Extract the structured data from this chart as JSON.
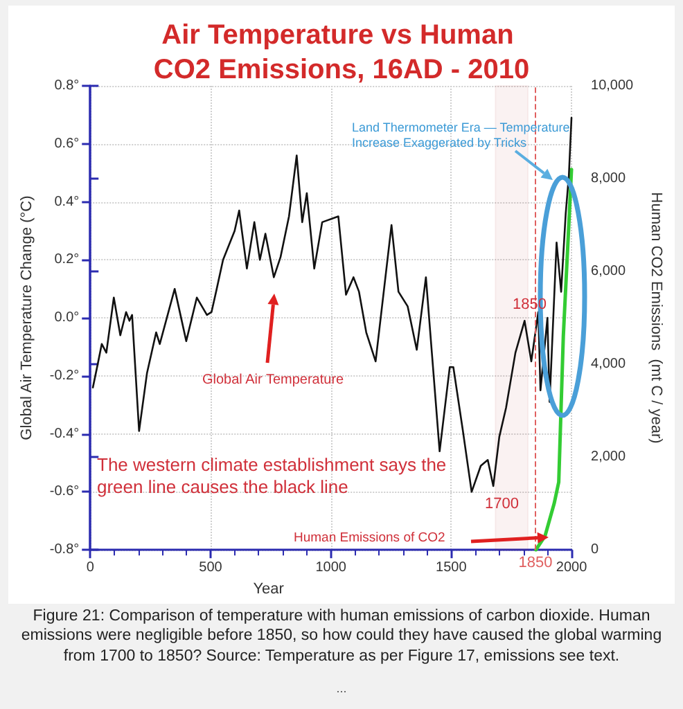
{
  "chart_data": {
    "type": "line",
    "title": "Air Temperature vs Human CO2 Emissions, 16AD - 2010",
    "xlabel": "Year",
    "ylabel": "Global Air Temperature Change (°C)",
    "y2label": "Human CO2 Emissions  (mt C / year)",
    "series": [
      {
        "axis": "y",
        "color": "#111111",
        "x": [
          11,
          31,
          48,
          67,
          98,
          125,
          149,
          163,
          174,
          203,
          236,
          274,
          289,
          351,
          399,
          443,
          485,
          504,
          523,
          552,
          600,
          619,
          651,
          682,
          705,
          728,
          763,
          791,
          826,
          858,
          881,
          900,
          931,
          964,
          1031,
          1063,
          1094,
          1117,
          1147,
          1186,
          1252,
          1281,
          1319,
          1357,
          1395,
          1452,
          1494,
          1509,
          1547,
          1585,
          1623,
          1652,
          1675,
          1700,
          1728,
          1767,
          1805,
          1833,
          1862,
          1871,
          1900,
          1909,
          1938,
          1957,
          1976,
          1989,
          2000
        ],
        "values": [
          -0.24,
          -0.16,
          -0.09,
          -0.12,
          0.07,
          -0.06,
          0.02,
          -0.01,
          0.01,
          -0.39,
          -0.19,
          -0.05,
          -0.09,
          0.1,
          -0.08,
          0.07,
          0.01,
          0.02,
          0.09,
          0.2,
          0.3,
          0.37,
          0.17,
          0.33,
          0.2,
          0.29,
          0.14,
          0.21,
          0.35,
          0.56,
          0.33,
          0.43,
          0.17,
          0.33,
          0.35,
          0.08,
          0.14,
          0.09,
          -0.05,
          -0.15,
          0.32,
          0.09,
          0.04,
          -0.11,
          0.14,
          -0.46,
          -0.17,
          -0.17,
          -0.38,
          -0.6,
          -0.51,
          -0.49,
          -0.58,
          -0.41,
          -0.31,
          -0.12,
          -0.01,
          -0.15,
          0.02,
          -0.25,
          0.0,
          -0.29,
          0.26,
          0.09,
          0.36,
          0.49,
          0.69
        ]
      },
      {
        "axis": "y2",
        "color": "#33cc33",
        "x": [
          1852,
          1890,
          1928,
          1947,
          1966,
          1985,
          2000
        ],
        "values": [
          0,
          300,
          1000,
          1460,
          4600,
          6600,
          8200
        ]
      }
    ],
    "xlim": [
      0,
      2000
    ],
    "xticks": [
      0,
      500,
      1000,
      1500,
      2000
    ],
    "ylim": [
      -0.8,
      0.8
    ],
    "yticks": [
      {
        "value": -0.8,
        "label": "-0.8°"
      },
      {
        "value": -0.6,
        "label": "-0.6°"
      },
      {
        "value": -0.4,
        "label": "-0.4°"
      },
      {
        "value": -0.2,
        "label": "-0.2°"
      },
      {
        "value": 0,
        "label": "0.0°"
      },
      {
        "value": 0.2,
        "label": "0.2°"
      },
      {
        "value": 0.4,
        "label": "0.4°"
      },
      {
        "value": 0.6,
        "label": "0.6°"
      },
      {
        "value": 0.8,
        "label": "0.8°"
      }
    ],
    "y2lim": [
      0,
      10000
    ],
    "y2ticks": [
      0,
      {
        "value": 2000,
        "label": "2,000"
      },
      {
        "value": 4000,
        "label": "4,000"
      },
      {
        "value": 6000,
        "label": "6,000"
      },
      {
        "value": 8000,
        "label": "8,000"
      },
      {
        "value": 10000,
        "label": "10,000"
      }
    ],
    "ref_lines": [
      {
        "axis": "x",
        "value": 1850,
        "label": "1850",
        "color": "#e06060",
        "line_style": "dashed"
      }
    ],
    "bands": [
      {
        "axis": "x",
        "from": 1684,
        "to": 1819,
        "color": "#b22222"
      }
    ],
    "annotations": [
      "Land Thermometer Era — Temperature Increase Exaggerated by Tricks",
      "Global Air Temperature",
      "The western climate establishment says the green line causes the black line",
      "Human Emissions of CO2",
      "1850",
      "1700",
      "Figure 21: Comparison of temperature with human emissions of carbon dioxide. Human emissions were negligible before 1850, so how could they have caused the global warming from 1700 to 1850? Source: Temperature as per Figure 17, emissions see text.",
      "..."
    ],
    "grid": true,
    "marker": "none",
    "line_style": "solid"
  }
}
